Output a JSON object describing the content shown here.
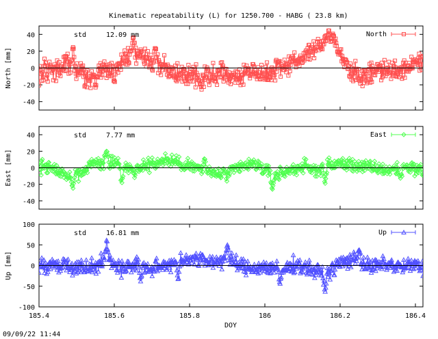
{
  "chart_data": {
    "type": "scatter",
    "title": "Kinematic repeatability (L) for 1250.700 - HABG  ( 23.8 km)",
    "xlabel": "DOY",
    "timestamp": "09/09/22 11:44",
    "xlim": [
      185.4,
      186.42
    ],
    "x_ticks": [
      185.4,
      185.6,
      185.8,
      186,
      186.2,
      186.4
    ],
    "x_tick_labels": [
      "185.4",
      "185.6",
      "185.8",
      "186",
      "186.2",
      "186.4"
    ],
    "panels": [
      {
        "name": "North",
        "ylabel": "North [mm]",
        "ylim": [
          -50,
          50
        ],
        "y_ticks": [
          -40,
          -20,
          0,
          20,
          40
        ],
        "std_label": "std",
        "std_value": "12.09 mm",
        "legend": "North",
        "color": "#ff5050",
        "marker": "square",
        "trend": [
          [
            185.4,
            -5
          ],
          [
            185.45,
            -3
          ],
          [
            185.47,
            5
          ],
          [
            185.5,
            -5
          ],
          [
            185.53,
            -12
          ],
          [
            185.57,
            0
          ],
          [
            185.6,
            -4
          ],
          [
            185.62,
            10
          ],
          [
            185.65,
            18
          ],
          [
            185.68,
            12
          ],
          [
            185.72,
            4
          ],
          [
            185.76,
            -5
          ],
          [
            185.8,
            -8
          ],
          [
            185.85,
            -12
          ],
          [
            185.88,
            -4
          ],
          [
            185.92,
            -12
          ],
          [
            185.96,
            -3
          ],
          [
            186.0,
            -8
          ],
          [
            186.04,
            2
          ],
          [
            186.08,
            8
          ],
          [
            186.12,
            18
          ],
          [
            186.15,
            25
          ],
          [
            186.18,
            38
          ],
          [
            186.2,
            15
          ],
          [
            186.23,
            -6
          ],
          [
            186.27,
            -10
          ],
          [
            186.3,
            -2
          ],
          [
            186.35,
            -4
          ],
          [
            186.4,
            4
          ],
          [
            186.42,
            6
          ]
        ],
        "spikes": [
          [
            185.49,
            30
          ],
          [
            185.65,
            40
          ],
          [
            186.17,
            48
          ],
          [
            186.14,
            33
          ],
          [
            185.71,
            28
          ],
          [
            185.55,
            -25
          ],
          [
            185.83,
            -25
          ]
        ],
        "noise": 6
      },
      {
        "name": "East",
        "ylabel": "East [mm]",
        "ylim": [
          -50,
          50
        ],
        "y_ticks": [
          -40,
          -20,
          0,
          20,
          40
        ],
        "std_label": "std",
        "std_value": "7.77 mm",
        "legend": "East",
        "color": "#50ff50",
        "marker": "diamond",
        "trend": [
          [
            185.4,
            2
          ],
          [
            185.44,
            0
          ],
          [
            185.48,
            -12
          ],
          [
            185.51,
            -6
          ],
          [
            185.54,
            5
          ],
          [
            185.58,
            8
          ],
          [
            185.62,
            2
          ],
          [
            185.65,
            -4
          ],
          [
            185.7,
            6
          ],
          [
            185.75,
            8
          ],
          [
            185.8,
            3
          ],
          [
            185.85,
            -6
          ],
          [
            185.9,
            -8
          ],
          [
            185.94,
            2
          ],
          [
            185.98,
            4
          ],
          [
            186.02,
            -10
          ],
          [
            186.06,
            -4
          ],
          [
            186.1,
            2
          ],
          [
            186.13,
            -3
          ],
          [
            186.17,
            3
          ],
          [
            186.2,
            5
          ],
          [
            186.24,
            3
          ],
          [
            186.28,
            0
          ],
          [
            186.33,
            -3
          ],
          [
            186.38,
            2
          ],
          [
            186.42,
            -4
          ]
        ],
        "spikes": [
          [
            185.49,
            -26
          ],
          [
            185.58,
            22
          ],
          [
            185.62,
            -22
          ],
          [
            186.02,
            -28
          ],
          [
            186.16,
            -22
          ],
          [
            185.84,
            15
          ],
          [
            186.36,
            -15
          ]
        ],
        "noise": 4
      },
      {
        "name": "Up",
        "ylabel": "Up [mm]",
        "ylim": [
          -100,
          100
        ],
        "y_ticks": [
          -100,
          -50,
          0,
          50,
          100
        ],
        "std_label": "std",
        "std_value": "16.81 mm",
        "legend": "Up",
        "color": "#5050ff",
        "marker": "triangle",
        "trend": [
          [
            185.4,
            -4
          ],
          [
            185.45,
            6
          ],
          [
            185.5,
            -6
          ],
          [
            185.55,
            2
          ],
          [
            185.58,
            14
          ],
          [
            185.62,
            -6
          ],
          [
            185.66,
            4
          ],
          [
            185.7,
            -10
          ],
          [
            185.75,
            6
          ],
          [
            185.8,
            18
          ],
          [
            185.85,
            10
          ],
          [
            185.9,
            14
          ],
          [
            185.95,
            -6
          ],
          [
            186.0,
            -4
          ],
          [
            186.05,
            -12
          ],
          [
            186.08,
            4
          ],
          [
            186.12,
            -8
          ],
          [
            186.16,
            -22
          ],
          [
            186.2,
            6
          ],
          [
            186.24,
            16
          ],
          [
            186.28,
            -4
          ],
          [
            186.32,
            4
          ],
          [
            186.36,
            -4
          ],
          [
            186.4,
            2
          ],
          [
            186.42,
            -8
          ]
        ],
        "spikes": [
          [
            185.58,
            70
          ],
          [
            185.9,
            60
          ],
          [
            186.16,
            -68
          ],
          [
            186.25,
            48
          ],
          [
            185.67,
            -42
          ],
          [
            185.77,
            -40
          ],
          [
            186.04,
            -50
          ]
        ],
        "noise": 9
      }
    ]
  }
}
